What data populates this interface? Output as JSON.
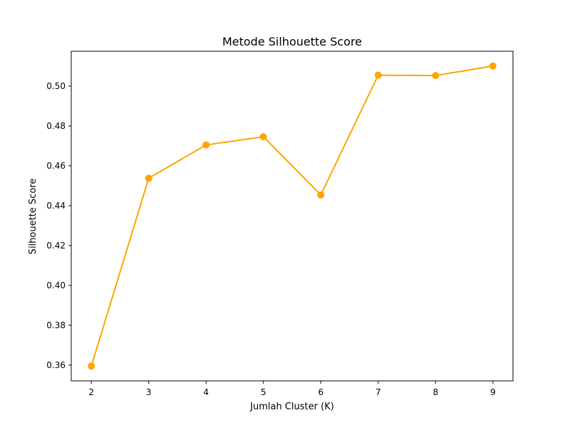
{
  "chart_data": {
    "type": "line",
    "title": "Metode Silhouette Score",
    "xlabel": "Jumlah Cluster (K)",
    "ylabel": "Silhouette Score",
    "x": [
      2,
      3,
      4,
      5,
      6,
      7,
      8,
      9
    ],
    "series": [
      {
        "values": [
          0.3595,
          0.4538,
          0.4705,
          0.4746,
          0.4454,
          0.5055,
          0.5053,
          0.5101
        ],
        "color": "#FFA500",
        "marker": "circle"
      }
    ],
    "xlim": [
      1.65,
      9.35
    ],
    "ylim": [
      0.3521,
      0.5175
    ],
    "x_ticks": [
      2,
      3,
      4,
      5,
      6,
      7,
      8,
      9
    ],
    "x_tick_labels": [
      "2",
      "3",
      "4",
      "5",
      "6",
      "7",
      "8",
      "9"
    ],
    "y_ticks": [
      0.36,
      0.38,
      0.4,
      0.42,
      0.44,
      0.46,
      0.48,
      0.5
    ],
    "y_tick_labels": [
      "0.36",
      "0.38",
      "0.40",
      "0.42",
      "0.44",
      "0.46",
      "0.48",
      "0.50"
    ],
    "grid": false,
    "legend": "none"
  }
}
